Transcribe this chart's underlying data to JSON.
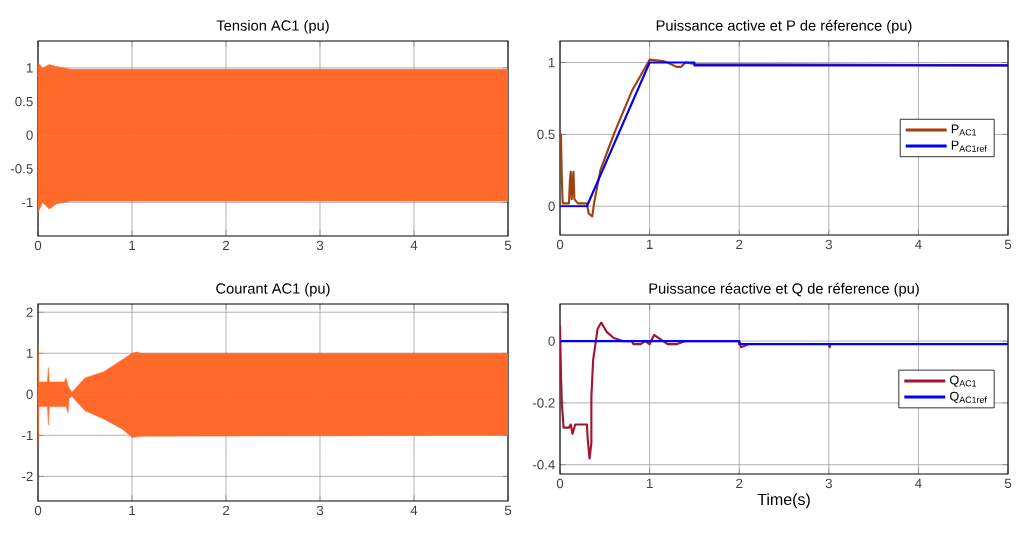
{
  "chart_data": [
    {
      "type": "area",
      "title": "Tension AC1 (pu)",
      "xlim": [
        0,
        5
      ],
      "xticks": [
        0,
        1,
        2,
        3,
        4,
        5
      ],
      "ylim": [
        -1.5,
        1.4
      ],
      "yticks": [
        -1,
        -0.5,
        0,
        0.5,
        1
      ],
      "grid": true,
      "series": [
        {
          "color": "#ff6a2a",
          "x": [
            0,
            0.05,
            0.12,
            0.2,
            0.35,
            5
          ],
          "values": [
            1.08,
            1.0,
            1.05,
            1.02,
            0.98,
            0.98
          ]
        },
        {
          "color": "#ff6a2a",
          "x": [
            0,
            0.05,
            0.12,
            0.2,
            0.35,
            5
          ],
          "values": [
            -1.15,
            -1.0,
            -1.1,
            -1.02,
            -0.98,
            -0.98
          ]
        }
      ]
    },
    {
      "type": "line",
      "title": "Puissance active et P de réference (pu)",
      "xlim": [
        0,
        5
      ],
      "xticks": [
        0,
        1,
        2,
        3,
        4,
        5
      ],
      "ylim": [
        -0.2,
        1.15
      ],
      "yticks": [
        0,
        0.5,
        1
      ],
      "grid": true,
      "legend": "right",
      "series": [
        {
          "name": "P$_{AC1}$",
          "color": "#a0410d",
          "x": [
            0,
            0.01,
            0.02,
            0.03,
            0.1,
            0.11,
            0.12,
            0.13,
            0.15,
            0.16,
            0.2,
            0.3,
            0.32,
            0.36,
            0.38,
            0.45,
            0.6,
            0.8,
            1.0,
            1.15,
            1.2,
            1.3,
            1.35,
            1.4,
            1.5,
            5
          ],
          "values": [
            0.5,
            0.5,
            0.2,
            0.02,
            0.02,
            0.17,
            0.24,
            0.05,
            0.24,
            0.05,
            0.02,
            0.02,
            -0.05,
            -0.07,
            0.02,
            0.25,
            0.5,
            0.8,
            1.02,
            1.01,
            1.0,
            0.97,
            0.97,
            1.0,
            0.99,
            0.98
          ]
        },
        {
          "name": "P$_{AC1ref}$",
          "color": "#0000ff",
          "x": [
            0,
            0.3,
            1,
            1.5,
            1.5,
            5
          ],
          "values": [
            0,
            0,
            1,
            1,
            0.98,
            0.98
          ]
        }
      ]
    },
    {
      "type": "area",
      "title": "Courant AC1 (pu)",
      "xlim": [
        0,
        5
      ],
      "xticks": [
        0,
        1,
        2,
        3,
        4,
        5
      ],
      "ylim": [
        -2.6,
        2.2
      ],
      "yticks": [
        -2,
        -1,
        0,
        1,
        2
      ],
      "grid": true,
      "series": [
        {
          "color": "#ff6a2a",
          "x": [
            0,
            0.01,
            0.1,
            0.11,
            0.12,
            0.28,
            0.3,
            0.32,
            0.36,
            0.5,
            0.7,
            0.9,
            1.0,
            1.05,
            1.1,
            5
          ],
          "values": [
            1.2,
            0.3,
            0.3,
            0.65,
            0.3,
            0.3,
            0.4,
            0.2,
            0.05,
            0.4,
            0.55,
            0.85,
            1.0,
            1.03,
            1.0,
            1.0
          ]
        },
        {
          "color": "#ff6a2a",
          "x": [
            0,
            0.01,
            0.1,
            0.11,
            0.12,
            0.3,
            0.32,
            0.33,
            0.36,
            0.5,
            0.7,
            0.9,
            1.0,
            1.1,
            5
          ],
          "values": [
            -1.2,
            -0.3,
            -0.3,
            -0.75,
            -0.3,
            -0.3,
            -0.45,
            -0.1,
            -0.05,
            -0.4,
            -0.6,
            -0.85,
            -1.05,
            -1.02,
            -1.0
          ]
        }
      ]
    },
    {
      "type": "line",
      "title": "Puissance réactive et Q de réference (pu)",
      "xlabel": "Time(s)",
      "xlim": [
        0,
        5
      ],
      "xticks": [
        0,
        1,
        2,
        3,
        4,
        5
      ],
      "ylim": [
        -0.43,
        0.12
      ],
      "yticks": [
        -0.4,
        -0.2,
        0
      ],
      "grid": true,
      "legend": "right",
      "series": [
        {
          "name": "Q$_{AC1}$",
          "color": "#a2142f",
          "x": [
            0,
            0.01,
            0.02,
            0.04,
            0.1,
            0.12,
            0.14,
            0.17,
            0.3,
            0.31,
            0.33,
            0.35,
            0.35,
            0.37,
            0.4,
            0.42,
            0.46,
            0.52,
            0.6,
            0.7,
            0.8,
            0.82,
            0.9,
            0.95,
            1.0,
            1.05,
            1.1,
            1.15,
            1.2,
            1.3,
            1.4,
            2.0,
            2.02,
            2.1,
            3.0,
            3.01,
            3.02,
            5
          ],
          "values": [
            0.05,
            -0.1,
            -0.2,
            -0.28,
            -0.28,
            -0.27,
            -0.3,
            -0.27,
            -0.27,
            -0.32,
            -0.38,
            -0.33,
            -0.18,
            -0.06,
            0.0,
            0.04,
            0.06,
            0.03,
            0.01,
            0.0,
            0.0,
            -0.01,
            -0.01,
            0.0,
            -0.01,
            0.02,
            0.01,
            0.0,
            -0.01,
            -0.01,
            0.0,
            0.0,
            -0.02,
            -0.01,
            -0.01,
            -0.02,
            -0.01,
            -0.01
          ]
        },
        {
          "name": "Q$_{AC1ref}$",
          "color": "#0000ff",
          "x": [
            0,
            2,
            2,
            5
          ],
          "values": [
            0,
            0,
            -0.01,
            -0.01
          ]
        }
      ]
    }
  ]
}
